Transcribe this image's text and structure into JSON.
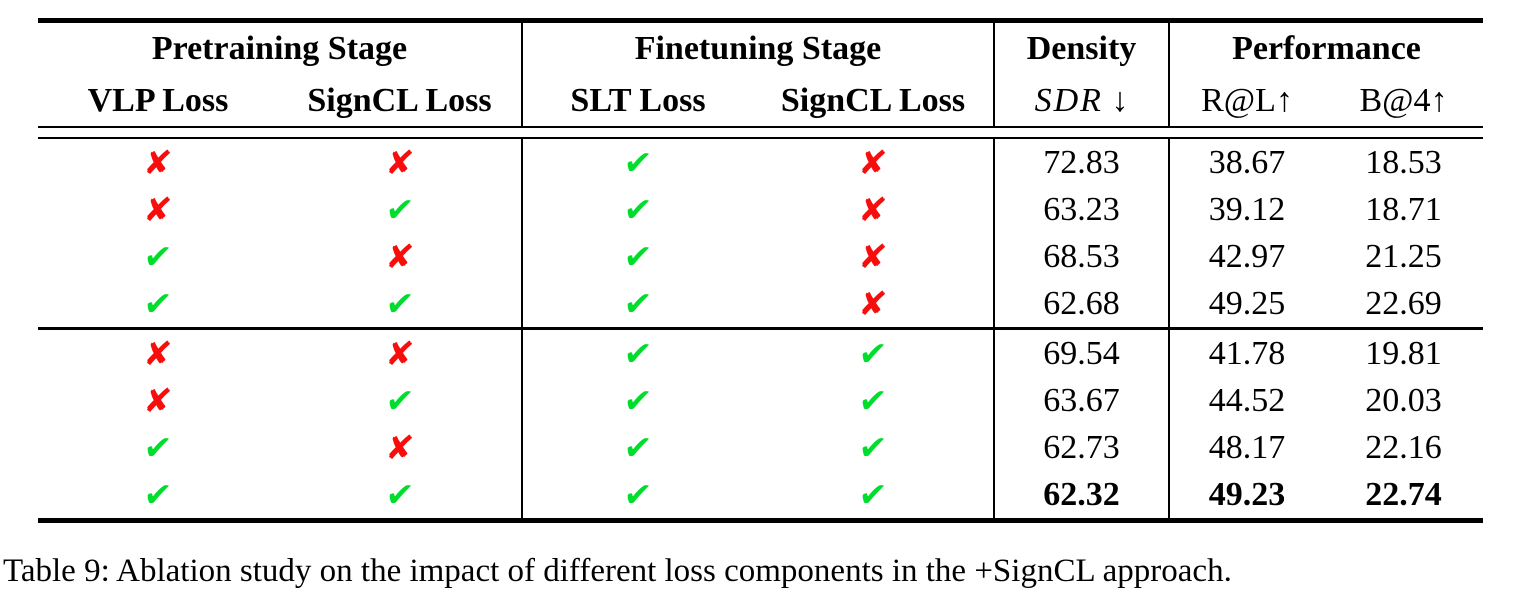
{
  "marks_map": {
    "yes": {
      "glyph": "✔",
      "color": "#00dd2c",
      "name": "check-icon"
    },
    "no": {
      "glyph": "✘",
      "color": "#f80d0d",
      "name": "cross-icon"
    }
  },
  "header": {
    "groups": [
      {
        "label": "Pretraining Stage"
      },
      {
        "label": "Finetuning Stage"
      },
      {
        "label": "Density"
      },
      {
        "label": "Performance"
      }
    ],
    "columns": [
      {
        "label": "VLP Loss"
      },
      {
        "label": "SignCL Loss"
      },
      {
        "label": "SLT Loss"
      },
      {
        "label": "SignCL Loss"
      },
      {
        "label": "SDR",
        "arrow": " ↓"
      },
      {
        "label": "R@L↑"
      },
      {
        "label": "B@4↑"
      }
    ]
  },
  "sections": [
    {
      "rows": [
        {
          "vlp": "no",
          "signcl_pre": "no",
          "slt": "yes",
          "signcl_ft": "no",
          "sdr": "72.83",
          "rl": "38.67",
          "b4": "18.53",
          "bold": false
        },
        {
          "vlp": "no",
          "signcl_pre": "yes",
          "slt": "yes",
          "signcl_ft": "no",
          "sdr": "63.23",
          "rl": "39.12",
          "b4": "18.71",
          "bold": false
        },
        {
          "vlp": "yes",
          "signcl_pre": "no",
          "slt": "yes",
          "signcl_ft": "no",
          "sdr": "68.53",
          "rl": "42.97",
          "b4": "21.25",
          "bold": false
        },
        {
          "vlp": "yes",
          "signcl_pre": "yes",
          "slt": "yes",
          "signcl_ft": "no",
          "sdr": "62.68",
          "rl": "49.25",
          "b4": "22.69",
          "bold": false
        }
      ]
    },
    {
      "rows": [
        {
          "vlp": "no",
          "signcl_pre": "no",
          "slt": "yes",
          "signcl_ft": "yes",
          "sdr": "69.54",
          "rl": "41.78",
          "b4": "19.81",
          "bold": false
        },
        {
          "vlp": "no",
          "signcl_pre": "yes",
          "slt": "yes",
          "signcl_ft": "yes",
          "sdr": "63.67",
          "rl": "44.52",
          "b4": "20.03",
          "bold": false
        },
        {
          "vlp": "yes",
          "signcl_pre": "no",
          "slt": "yes",
          "signcl_ft": "yes",
          "sdr": "62.73",
          "rl": "48.17",
          "b4": "22.16",
          "bold": false
        },
        {
          "vlp": "yes",
          "signcl_pre": "yes",
          "slt": "yes",
          "signcl_ft": "yes",
          "sdr": "62.32",
          "rl": "49.23",
          "b4": "22.74",
          "bold": true
        }
      ]
    }
  ],
  "caption": "Table 9: Ablation study on the impact of different loss components in the +SignCL approach."
}
